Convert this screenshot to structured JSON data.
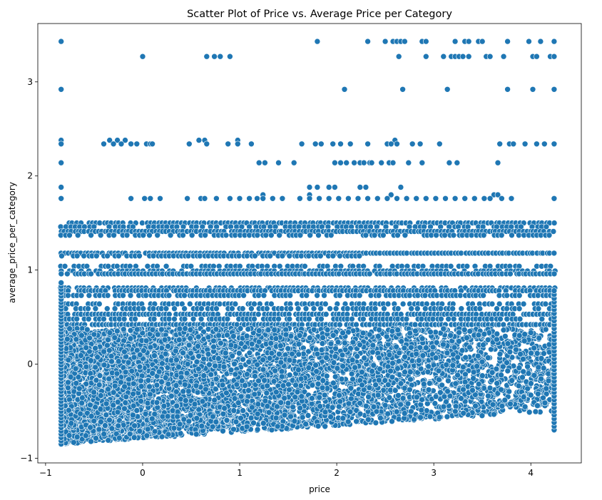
{
  "chart_data": {
    "type": "scatter",
    "title": "Scatter Plot of Price vs. Average Price per Category",
    "xlabel": "price",
    "ylabel": "average_price_per_category",
    "xlim": [
      -1.08,
      4.52
    ],
    "ylim": [
      -1.05,
      3.62
    ],
    "x_ticks": [
      -1,
      0,
      1,
      2,
      3,
      4
    ],
    "y_ticks": [
      -1,
      0,
      1,
      2,
      3
    ],
    "grid": false,
    "legend": "none",
    "marker_color": "#1f77b4",
    "marker_edge": "#ffffff",
    "discrete_levels": [
      {
        "y": 3.43,
        "x": [
          -0.84,
          1.8,
          2.32,
          2.5,
          2.58,
          2.62,
          2.66,
          2.7,
          2.88,
          2.92,
          3.22,
          3.32,
          3.36,
          3.46,
          3.5,
          3.76,
          3.98,
          4.1,
          4.24
        ]
      },
      {
        "y": 3.27,
        "x": [
          0.0,
          0.66,
          0.74,
          0.8,
          0.9,
          2.64,
          2.92,
          3.1,
          3.18,
          3.22,
          3.26,
          3.3,
          3.36,
          3.54,
          3.58,
          3.72,
          4.02,
          4.06,
          4.2,
          4.24
        ]
      },
      {
        "y": 2.92,
        "x": [
          -0.84,
          2.08,
          2.68,
          3.14,
          3.76,
          4.02,
          4.24
        ]
      },
      {
        "y": 2.38,
        "x": [
          -0.84,
          -0.34,
          -0.26,
          -0.18,
          0.58,
          0.64,
          0.98,
          2.6
        ]
      },
      {
        "y": 2.34,
        "x": [
          -0.84,
          -0.4,
          -0.3,
          -0.22,
          -0.12,
          -0.06,
          0.04,
          0.08,
          0.1,
          0.48,
          0.66,
          0.88,
          0.98,
          1.12,
          1.64,
          1.78,
          1.84,
          1.96,
          2.04,
          2.14,
          2.32,
          2.52,
          2.56,
          2.62,
          2.78,
          2.86,
          3.06,
          3.68,
          3.78,
          3.82,
          3.94,
          4.06,
          4.14,
          4.24
        ]
      },
      {
        "y": 2.14,
        "x": [
          -0.84,
          1.2,
          1.26,
          1.4,
          1.56,
          1.98,
          2.04,
          2.1,
          2.18,
          2.24,
          2.28,
          2.34,
          2.36,
          2.46,
          2.54,
          2.58,
          2.74,
          2.88,
          3.16,
          3.24,
          3.66
        ]
      },
      {
        "y": 1.88,
        "x": [
          -0.84,
          1.72,
          1.8,
          1.92,
          1.98,
          2.24,
          2.3,
          2.66
        ]
      },
      {
        "y": 1.8,
        "x": [
          1.24,
          1.72,
          2.56,
          3.62,
          3.66
        ]
      },
      {
        "y": 1.76,
        "x": [
          -0.84,
          -0.12,
          0.02,
          0.08,
          0.18,
          0.46,
          0.6,
          0.64,
          0.76,
          0.9,
          1.0,
          1.1,
          1.18,
          1.24,
          1.34,
          1.44,
          1.62,
          1.72,
          1.82,
          1.92,
          2.02,
          2.12,
          2.22,
          2.32,
          2.42,
          2.52,
          2.62,
          2.72,
          2.82,
          2.92,
          3.02,
          3.12,
          3.22,
          3.32,
          3.42,
          3.52,
          3.58,
          3.7,
          3.8,
          4.24
        ]
      },
      {
        "y": 1.5,
        "band": [
          -0.84,
          4.24
        ],
        "step": 0.04,
        "skip": 0.06
      },
      {
        "y": 1.46,
        "band": [
          -0.84,
          4.24
        ],
        "step": 0.05,
        "skip": 0.25
      },
      {
        "y": 1.41,
        "band": [
          -0.84,
          4.24
        ],
        "step": 0.035,
        "skip": 0.02
      },
      {
        "y": 1.37,
        "band": [
          -0.84,
          4.24
        ],
        "step": 0.045,
        "skip": 0.3
      },
      {
        "y": 1.18,
        "band": [
          -0.84,
          4.24
        ],
        "step": 0.035,
        "skip": 0.03
      },
      {
        "y": 1.15,
        "band": [
          -0.84,
          2.3
        ],
        "step": 0.04,
        "skip": 0.2
      },
      {
        "y": 1.04,
        "band": [
          -0.84,
          4.24
        ],
        "step": 0.045,
        "skip": 0.3
      },
      {
        "y": 0.99,
        "band": [
          -0.84,
          4.24
        ],
        "step": 0.04,
        "skip": 0.25
      },
      {
        "y": 0.96,
        "band": [
          -0.84,
          4.24
        ],
        "step": 0.035,
        "skip": 0.05
      },
      {
        "y": 0.81,
        "band": [
          -0.84,
          4.24
        ],
        "step": 0.04,
        "skip": 0.2
      },
      {
        "y": 0.78,
        "band": [
          -0.84,
          4.24
        ],
        "step": 0.035,
        "skip": 0.1
      },
      {
        "y": 0.73,
        "band": [
          -0.84,
          4.24
        ],
        "step": 0.04,
        "skip": 0.15
      },
      {
        "y": 0.64,
        "band": [
          -0.84,
          4.24
        ],
        "step": 0.04,
        "skip": 0.25
      },
      {
        "y": 0.59,
        "band": [
          -0.84,
          4.24
        ],
        "step": 0.04,
        "skip": 0.3
      },
      {
        "y": 0.53,
        "band": [
          -0.84,
          4.24
        ],
        "step": 0.035,
        "skip": 0.08
      },
      {
        "y": 0.48,
        "band": [
          -0.84,
          4.24
        ],
        "step": 0.04,
        "skip": 0.3
      },
      {
        "y": 0.42,
        "band": [
          -0.84,
          4.24
        ],
        "step": 0.035,
        "skip": 0.05
      }
    ],
    "dense_region": {
      "x_range": [
        -0.84,
        4.24
      ],
      "y_top": 0.38,
      "y_floor_at_x_min": -0.85,
      "y_floor_at_x_max": -0.5,
      "density_note": "dense cloud of points below the 0.4 level"
    }
  }
}
